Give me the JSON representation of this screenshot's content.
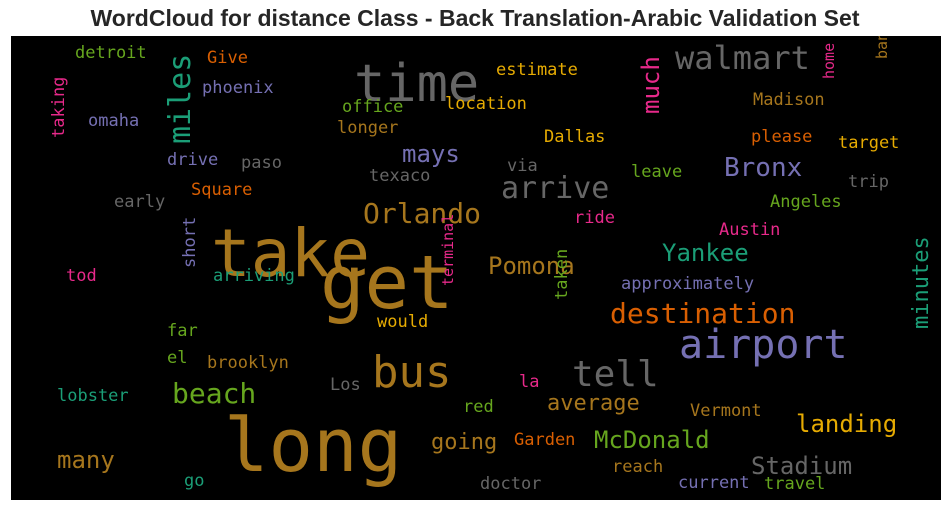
{
  "title": "WordCloud for distance Class - Back Translation-Arabic Validation Set",
  "chart_data": {
    "type": "wordcloud",
    "title": "WordCloud for distance Class - Back Translation-Arabic Validation Set",
    "background": "#000000",
    "words": [
      {
        "text": "long",
        "color": "#a6761d"
      },
      {
        "text": "get",
        "color": "#a6761d"
      },
      {
        "text": "take",
        "color": "#a6761d"
      },
      {
        "text": "time",
        "color": "#666666"
      },
      {
        "text": "bus",
        "color": "#a6761d"
      },
      {
        "text": "airport",
        "color": "#7570b3"
      },
      {
        "text": "tell",
        "color": "#666666"
      },
      {
        "text": "walmart",
        "color": "#666666"
      },
      {
        "text": "arrive",
        "color": "#666666"
      },
      {
        "text": "Orlando",
        "color": "#a6761d"
      },
      {
        "text": "destination",
        "color": "#d95f02"
      },
      {
        "text": "beach",
        "color": "#66a61e"
      },
      {
        "text": "miles",
        "color": "#1b9e77"
      },
      {
        "text": "much",
        "color": "#e7298a"
      },
      {
        "text": "Bronx",
        "color": "#7570b3"
      },
      {
        "text": "Yankee",
        "color": "#1b9e77"
      },
      {
        "text": "Pomona",
        "color": "#a6761d"
      },
      {
        "text": "McDonald",
        "color": "#66a61e"
      },
      {
        "text": "landing",
        "color": "#e6ab02"
      },
      {
        "text": "Stadium",
        "color": "#666666"
      },
      {
        "text": "mays",
        "color": "#7570b3"
      },
      {
        "text": "average",
        "color": "#a6761d"
      },
      {
        "text": "going",
        "color": "#a6761d"
      },
      {
        "text": "many",
        "color": "#a6761d"
      },
      {
        "text": "minutes",
        "color": "#1b9e77"
      },
      {
        "text": "detroit",
        "color": "#66a61e"
      },
      {
        "text": "Give",
        "color": "#d95f02"
      },
      {
        "text": "phoenix",
        "color": "#7570b3"
      },
      {
        "text": "estimate",
        "color": "#e6ab02"
      },
      {
        "text": "home",
        "color": "#e7298a"
      },
      {
        "text": "bank",
        "color": "#a6761d"
      },
      {
        "text": "office",
        "color": "#66a61e"
      },
      {
        "text": "location",
        "color": "#e6ab02"
      },
      {
        "text": "Madison",
        "color": "#a6761d"
      },
      {
        "text": "omaha",
        "color": "#7570b3"
      },
      {
        "text": "longer",
        "color": "#a6761d"
      },
      {
        "text": "please",
        "color": "#d95f02"
      },
      {
        "text": "target",
        "color": "#e6ab02"
      },
      {
        "text": "taking",
        "color": "#e7298a"
      },
      {
        "text": "Dallas",
        "color": "#e6ab02"
      },
      {
        "text": "drive",
        "color": "#7570b3"
      },
      {
        "text": "paso",
        "color": "#666666"
      },
      {
        "text": "via",
        "color": "#666666"
      },
      {
        "text": "leave",
        "color": "#66a61e"
      },
      {
        "text": "texaco",
        "color": "#666666"
      },
      {
        "text": "trip",
        "color": "#666666"
      },
      {
        "text": "early",
        "color": "#666666"
      },
      {
        "text": "Square",
        "color": "#d95f02"
      },
      {
        "text": "Angeles",
        "color": "#66a61e"
      },
      {
        "text": "ride",
        "color": "#e7298a"
      },
      {
        "text": "Austin",
        "color": "#e7298a"
      },
      {
        "text": "tod",
        "color": "#e7298a"
      },
      {
        "text": "arriving",
        "color": "#1b9e77"
      },
      {
        "text": "approximately",
        "color": "#7570b3"
      },
      {
        "text": "short",
        "color": "#7570b3"
      },
      {
        "text": "terminal",
        "color": "#e7298a"
      },
      {
        "text": "far",
        "color": "#66a61e"
      },
      {
        "text": "would",
        "color": "#e6ab02"
      },
      {
        "text": "taken",
        "color": "#66a61e"
      },
      {
        "text": "el",
        "color": "#66a61e"
      },
      {
        "text": "brooklyn",
        "color": "#a6761d"
      },
      {
        "text": "la",
        "color": "#e7298a"
      },
      {
        "text": "lobster",
        "color": "#1b9e77"
      },
      {
        "text": "Los",
        "color": "#666666"
      },
      {
        "text": "red",
        "color": "#66a61e"
      },
      {
        "text": "Vermont",
        "color": "#a6761d"
      },
      {
        "text": "Garden",
        "color": "#d95f02"
      },
      {
        "text": "reach",
        "color": "#a6761d"
      },
      {
        "text": "go",
        "color": "#1b9e77"
      },
      {
        "text": "doctor",
        "color": "#666666"
      },
      {
        "text": "current",
        "color": "#7570b3"
      },
      {
        "text": "travel",
        "color": "#66a61e"
      }
    ]
  }
}
